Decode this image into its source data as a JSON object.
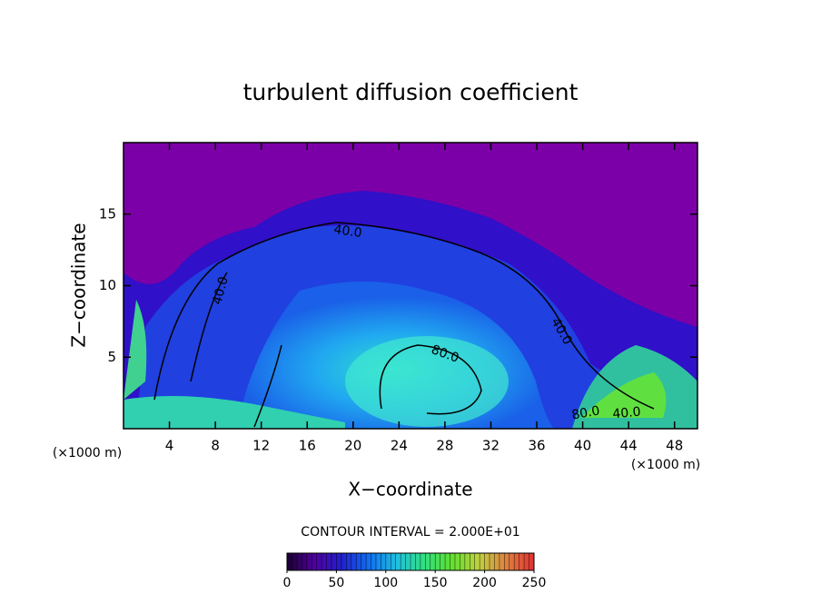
{
  "chart_data": {
    "type": "contour",
    "title": "turbulent diffusion coefficient",
    "xlabel": "X−coordinate",
    "ylabel": "Z−coordinate",
    "x_unit_left": "(×1000 m)",
    "x_unit_right": "(×1000 m)",
    "contour_interval": "CONTOUR INTERVAL = 2.000E+01",
    "xlim": [
      0,
      50
    ],
    "xticks": [
      4,
      8,
      12,
      16,
      20,
      24,
      28,
      32,
      36,
      40,
      44,
      48
    ],
    "ylim": [
      0,
      20
    ],
    "yticks": [
      5,
      10,
      15
    ],
    "clim": [
      0,
      250
    ],
    "cticks": [
      0,
      50,
      100,
      150,
      200,
      250
    ],
    "colormap": [
      "#1a0030",
      "#5000a0",
      "#2020d0",
      "#1070f0",
      "#20c0e0",
      "#30e080",
      "#60e030",
      "#c0d040",
      "#e08040",
      "#e03030"
    ],
    "annotations": [
      "40.0",
      "40.0",
      "40.0",
      "80.0",
      "80.0",
      "40.0"
    ]
  }
}
